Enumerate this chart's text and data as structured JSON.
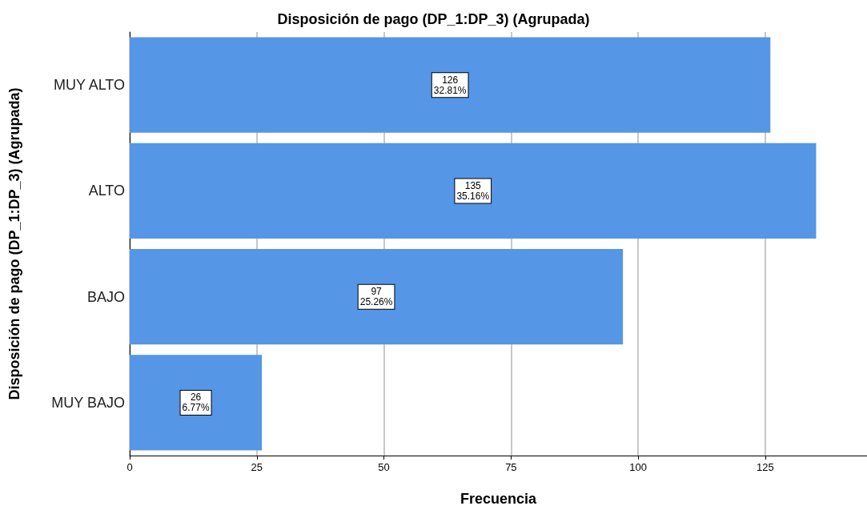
{
  "chart_data": {
    "type": "bar",
    "orientation": "horizontal",
    "title": "Disposición de pago (DP_1:DP_3) (Agrupada)",
    "xlabel": "Frecuencia",
    "ylabel": "Disposición de pago (DP_1:DP_3) (Agrupada)",
    "categories": [
      "MUY ALTO",
      "ALTO",
      "BAJO",
      "MUY BAJO"
    ],
    "values": [
      126,
      135,
      97,
      26
    ],
    "value_labels": [
      "126\n32.81%",
      "135\n35.16%",
      "97\n25.26%",
      "26\n6.77%"
    ],
    "color": "#5596e6",
    "xlim": [
      0,
      145
    ],
    "xticks": [
      0,
      25,
      50,
      75,
      100,
      125
    ],
    "grid": "x"
  }
}
